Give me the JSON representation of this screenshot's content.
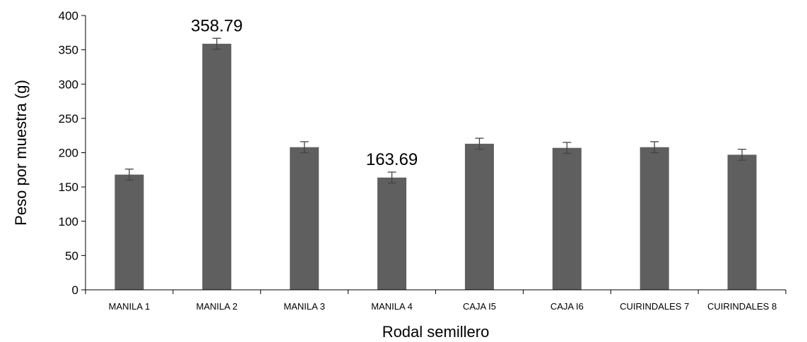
{
  "chart_data": {
    "type": "bar",
    "title": "",
    "xlabel": "Rodal semillero",
    "ylabel": "Peso por muestra (g)",
    "ylim": [
      0,
      400
    ],
    "yticks": [
      0,
      50,
      100,
      150,
      200,
      250,
      300,
      350,
      400
    ],
    "ytick_labels": [
      "0",
      "50",
      "100",
      "150",
      "200",
      "250",
      "300",
      "350",
      "400"
    ],
    "categories": [
      "MANILA 1",
      "MANILA 2",
      "MANILA 3",
      "MANILA 4",
      "CAJA I5",
      "CAJA I6",
      "CUIRINDALES 7",
      "CUIRINDALES 8"
    ],
    "values": [
      168,
      358.79,
      208,
      163.69,
      213,
      207,
      208,
      197
    ],
    "error": [
      8,
      8,
      8,
      8,
      8,
      8,
      8,
      8
    ],
    "data_labels": [
      "",
      "358.79",
      "",
      "163.69",
      "",
      "",
      "",
      ""
    ],
    "bar_color": "#5f5f5f",
    "grid": false,
    "legend": "none"
  }
}
